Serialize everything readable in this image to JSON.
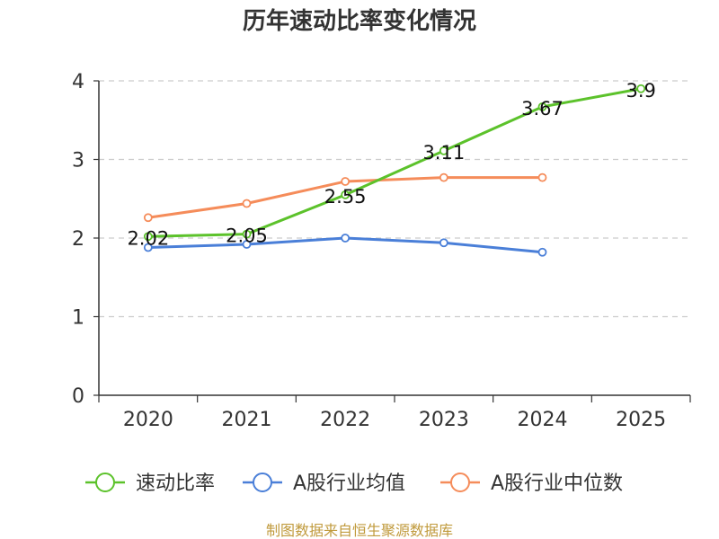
{
  "chart_data": {
    "type": "line",
    "title": "历年速动比率变化情况",
    "categories": [
      "2020",
      "2021",
      "2022",
      "2023",
      "2024",
      "2025"
    ],
    "ylim": [
      0,
      4
    ],
    "yticks": [
      "0",
      "1",
      "2",
      "3",
      "4"
    ],
    "grid": true,
    "legend_position": "bottom",
    "series": [
      {
        "name": "速动比率",
        "color": "#5cc22b",
        "values": [
          2.02,
          2.05,
          2.55,
          3.11,
          3.67,
          3.9
        ],
        "labels": [
          "2.02",
          "2.05",
          "2.55",
          "3.11",
          "3.67",
          "3.9"
        ]
      },
      {
        "name": "A股行业均值",
        "color": "#4a7fd8",
        "values": [
          1.88,
          1.92,
          2.0,
          1.94,
          1.82,
          null
        ]
      },
      {
        "name": "A股行业中位数",
        "color": "#f58c5a",
        "values": [
          2.26,
          2.44,
          2.72,
          2.77,
          2.77,
          null
        ]
      }
    ]
  },
  "source_text": "制图数据来自恒生聚源数据库"
}
